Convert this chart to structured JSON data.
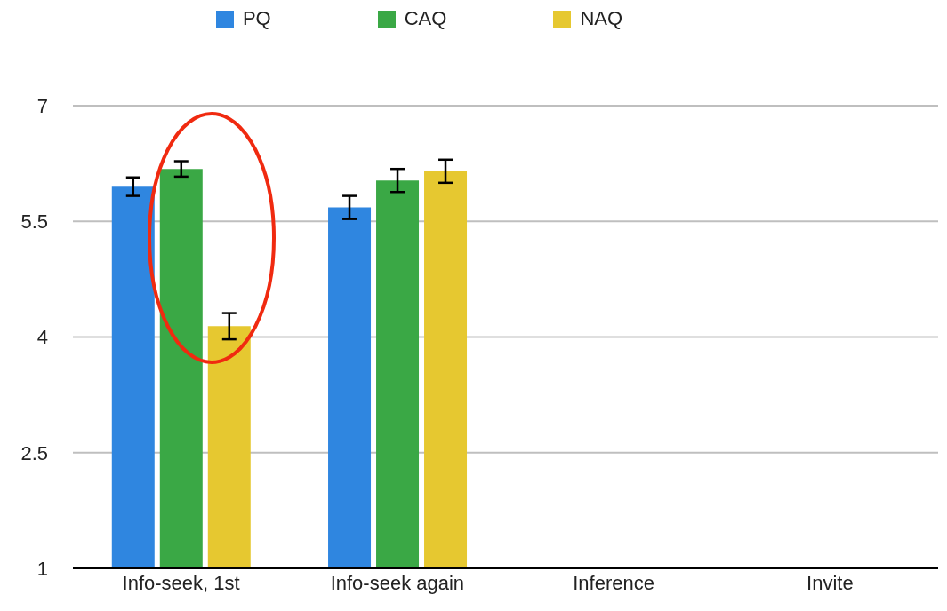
{
  "chart_data": {
    "type": "bar",
    "categories": [
      "Info-seek, 1st",
      "Info-seek again",
      "Inference",
      "Invite"
    ],
    "series": [
      {
        "name": "PQ",
        "color": "#2f86e0",
        "values": [
          5.95,
          5.68,
          null,
          null
        ],
        "errors": [
          0.12,
          0.15,
          null,
          null
        ]
      },
      {
        "name": "CAQ",
        "color": "#3aa845",
        "values": [
          6.18,
          6.03,
          null,
          null
        ],
        "errors": [
          0.1,
          0.15,
          null,
          null
        ]
      },
      {
        "name": "NAQ",
        "color": "#e6c830",
        "values": [
          4.14,
          6.15,
          null,
          null
        ],
        "errors": [
          0.17,
          0.15,
          null,
          null
        ]
      }
    ],
    "ylim": [
      1,
      7
    ],
    "yticks": [
      1,
      2.5,
      4,
      5.5,
      7
    ],
    "grid": "y",
    "legend": "top"
  }
}
